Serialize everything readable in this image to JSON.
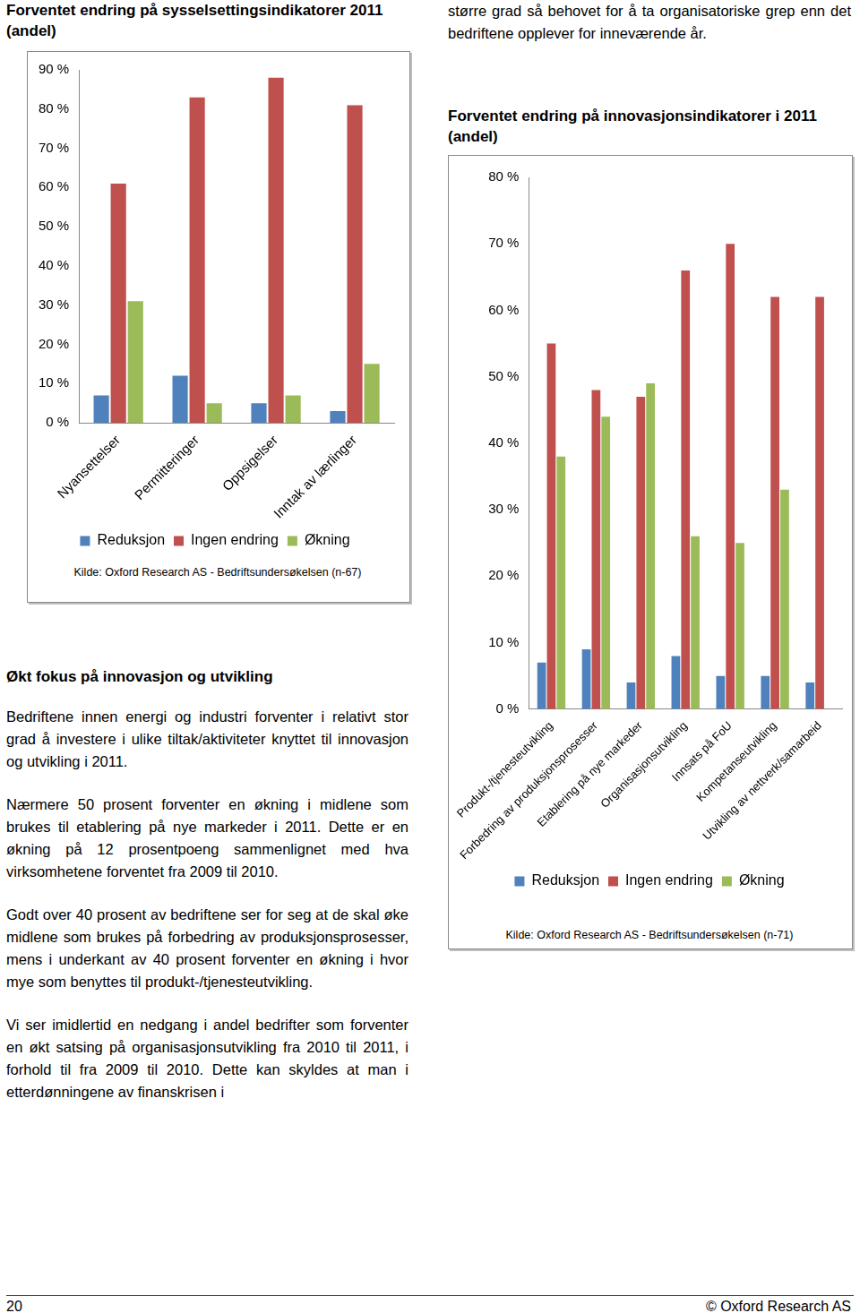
{
  "header_text": "større grad så behovet for å ta organisatoriske grep enn det bedriftene opplever for inneværende år.",
  "section": {
    "heading": "Økt fokus på innovasjon og utvikling",
    "paragraphs": [
      "Bedriftene innen energi og industri forventer i relativt stor grad å investere i ulike tiltak/aktiviteter knyttet til innovasjon og utvikling i 2011.",
      "Nærmere 50 prosent forventer en økning i midlene som brukes til etablering på nye markeder i 2011. Dette er en økning på 12 prosentpoeng sammenlignet med hva virksomhetene forventet fra 2009 til 2010.",
      "Godt over 40 prosent av bedriftene ser for seg at de skal øke midlene som brukes på forbedring av produksjonsprosesser, mens i underkant av 40 prosent forventer en økning i hvor mye som benyttes til produkt-/tjenesteutvikling.",
      "Vi ser imidlertid en nedgang i andel bedrifter som forventer en økt satsing på organisasjonsutvikling fra 2010 til 2011, i forhold til fra 2009 til 2010. Dette kan skyldes at man i etterdønningene av finanskrisen i"
    ]
  },
  "footer": {
    "page_number": "20",
    "copyright": "© Oxford Research AS"
  },
  "chart_data": [
    {
      "type": "bar",
      "title": "Forventet endring på sysselsettingsindikatorer 2011 (andel)",
      "source": "Kilde: Oxford Research AS - Bedriftsundersøkelsen (n-67)",
      "categories": [
        "Nyansettelser",
        "Permitteringer",
        "Oppsigelser",
        "Inntak av lærlinger"
      ],
      "series": [
        {
          "name": "Reduksjon",
          "color": "#4f81bd",
          "values": [
            7,
            12,
            5,
            3
          ]
        },
        {
          "name": "Ingen endring",
          "color": "#c0504d",
          "values": [
            61,
            83,
            88,
            81
          ]
        },
        {
          "name": "Økning",
          "color": "#9bbb59",
          "values": [
            31,
            5,
            7,
            15
          ]
        }
      ],
      "ylim": [
        0,
        90
      ],
      "yticks": [
        {
          "value": 0,
          "label": "0 %"
        },
        {
          "value": 10,
          "label": "10 %"
        },
        {
          "value": 20,
          "label": "20 %"
        },
        {
          "value": 30,
          "label": "30 %"
        },
        {
          "value": 40,
          "label": "40 %"
        },
        {
          "value": 50,
          "label": "50 %"
        },
        {
          "value": 60,
          "label": "60 %"
        },
        {
          "value": 70,
          "label": "70 %"
        },
        {
          "value": 80,
          "label": "80 %"
        },
        {
          "value": 90,
          "label": "90 %"
        }
      ],
      "grid": false,
      "legend": "bottom"
    },
    {
      "type": "bar",
      "title": "Forventet endring på innovasjonsindikatorer i 2011 (andel)",
      "source": "Kilde: Oxford Research AS - Bedriftsundersøkelsen (n-71)",
      "categories": [
        "Produkt-/tjenesteutvikling",
        "Forbedring av produksjonsprosesser",
        "Etablering på nye markeder",
        "Organisasjonsutvikling",
        "Innsats på FoU",
        "Kompetanseutvikling",
        "Utvikling av nettverk/samarbeid"
      ],
      "series": [
        {
          "name": "Reduksjon",
          "color": "#4f81bd",
          "values": [
            7,
            9,
            4,
            8,
            5,
            5,
            4
          ]
        },
        {
          "name": "Ingen endring",
          "color": "#c0504d",
          "values": [
            55,
            48,
            47,
            66,
            70,
            62,
            62
          ]
        },
        {
          "name": "Økning",
          "color": "#9bbb59",
          "values": [
            38,
            44,
            49,
            26,
            25,
            33,
            null
          ]
        }
      ],
      "ylim": [
        0,
        80
      ],
      "yticks": [
        {
          "value": 0,
          "label": "0 %"
        },
        {
          "value": 10,
          "label": "10 %"
        },
        {
          "value": 20,
          "label": "20 %"
        },
        {
          "value": 30,
          "label": "30 %"
        },
        {
          "value": 40,
          "label": "40 %"
        },
        {
          "value": 50,
          "label": "50 %"
        },
        {
          "value": 60,
          "label": "60 %"
        },
        {
          "value": 70,
          "label": "70 %"
        },
        {
          "value": 80,
          "label": "80 %"
        }
      ],
      "grid": false,
      "legend": "bottom"
    }
  ]
}
